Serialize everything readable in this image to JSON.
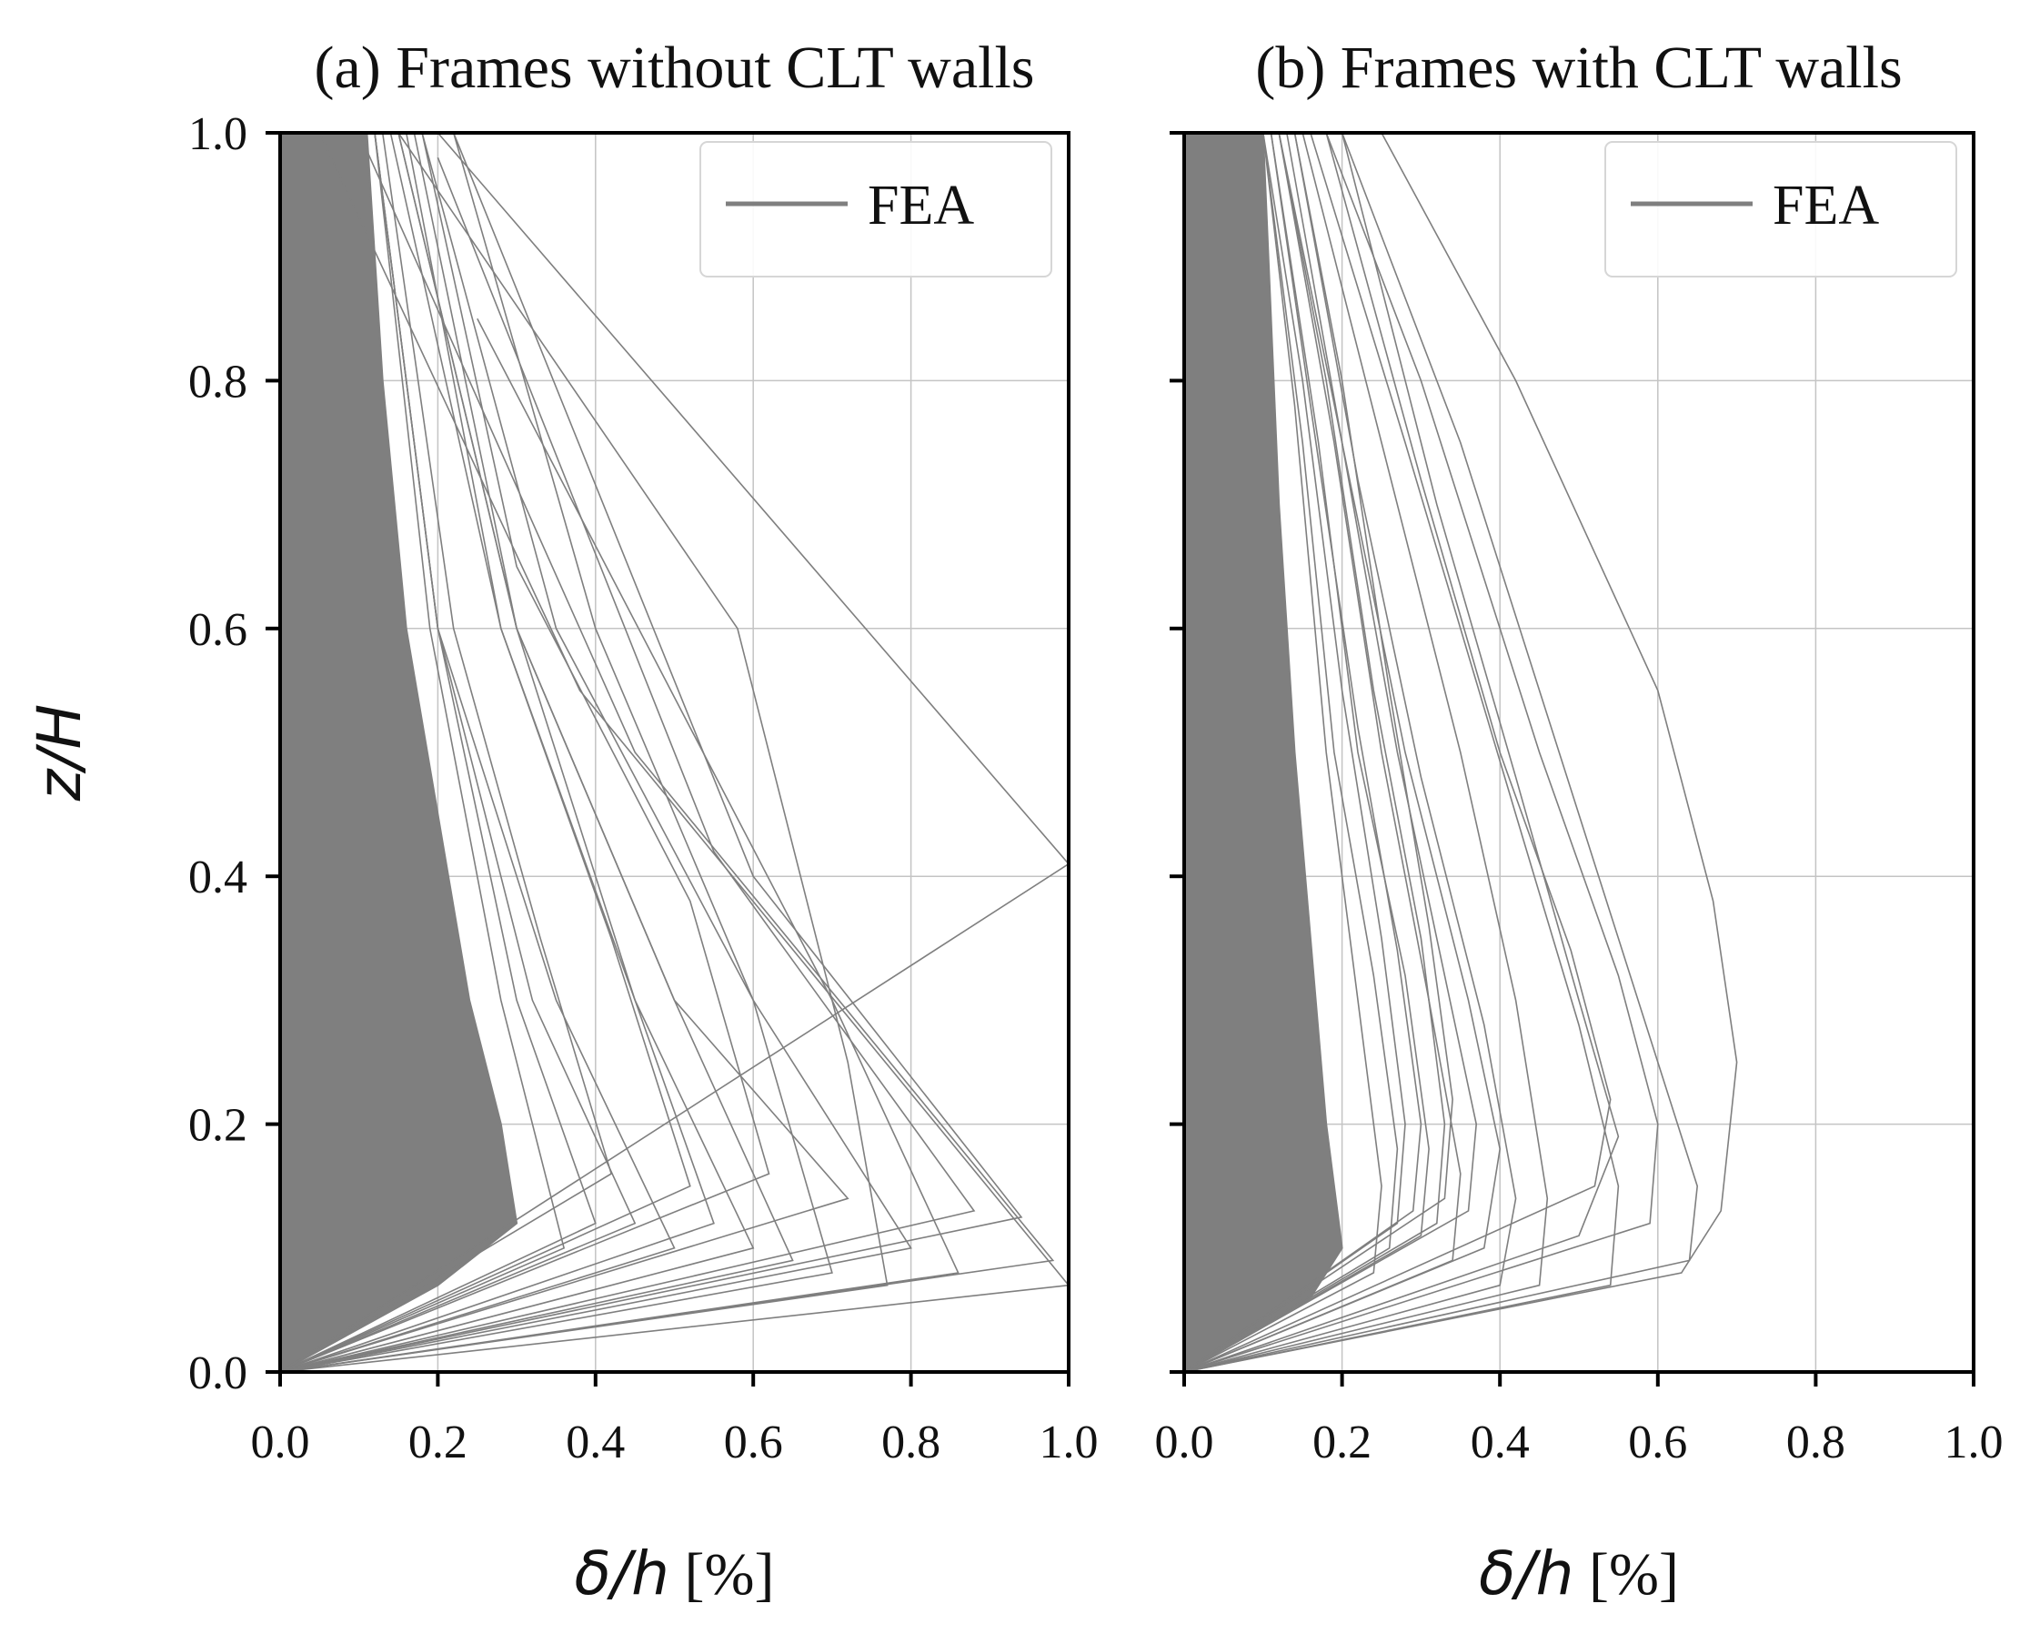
{
  "colors": {
    "series": "#7f7f7f",
    "grid": "#c4c4c4",
    "axis": "#000000",
    "legend_border": "#d6d6d6"
  },
  "chart_data": [
    {
      "type": "line",
      "panel": "a",
      "title": "(a) Frames without CLT walls",
      "xlabel_var": "δ/h",
      "xlabel_unit": " [%]",
      "ylabel": "z/H",
      "xlim": [
        0.0,
        1.0
      ],
      "ylim": [
        0.0,
        1.0
      ],
      "xticks": [
        "0.0",
        "0.2",
        "0.4",
        "0.6",
        "0.8",
        "1.0"
      ],
      "yticks": [
        "0.0",
        "0.2",
        "0.4",
        "0.6",
        "0.8",
        "1.0"
      ],
      "grid": true,
      "legend": {
        "label": "FEA",
        "position": "top-right"
      },
      "dense_region_boundary": [
        [
          0.0,
          0.0
        ],
        [
          0.2,
          0.07
        ],
        [
          0.3,
          0.12
        ],
        [
          0.28,
          0.2
        ],
        [
          0.24,
          0.3
        ],
        [
          0.2,
          0.45
        ],
        [
          0.16,
          0.6
        ],
        [
          0.13,
          0.8
        ],
        [
          0.11,
          1.0
        ],
        [
          0.0,
          1.0
        ]
      ],
      "series": [
        {
          "name": "FEA",
          "x": [
            0,
            1.0,
            0.38,
            0.05
          ],
          "y": [
            0,
            0.07,
            0.55,
            1.0
          ]
        },
        {
          "name": "FEA",
          "x": [
            0,
            0.98,
            0.45,
            0.1
          ],
          "y": [
            0,
            0.09,
            0.5,
            1.0
          ]
        },
        {
          "name": "FEA",
          "x": [
            0,
            0.94,
            0.6,
            0.22
          ],
          "y": [
            0,
            0.125,
            0.4,
            1.0
          ]
        },
        {
          "name": "FEA",
          "x": [
            0,
            0.88,
            0.55,
            0.2
          ],
          "y": [
            0,
            0.13,
            0.42,
            0.98
          ]
        },
        {
          "name": "FEA",
          "x": [
            0,
            0.86,
            0.7,
            0.25
          ],
          "y": [
            0,
            0.08,
            0.3,
            0.85
          ]
        },
        {
          "name": "FEA",
          "x": [
            0,
            0.77,
            0.72,
            0.58,
            0.15
          ],
          "y": [
            0,
            0.07,
            0.25,
            0.6,
            1.0
          ]
        },
        {
          "name": "FEA",
          "x": [
            0,
            0.7,
            0.6,
            0.4,
            0.22
          ],
          "y": [
            0,
            0.08,
            0.3,
            0.6,
            1.0
          ]
        },
        {
          "name": "FEA",
          "x": [
            0,
            0.65,
            0.5,
            0.3,
            0.15
          ],
          "y": [
            0,
            0.09,
            0.3,
            0.6,
            1.0
          ]
        },
        {
          "name": "FEA",
          "x": [
            0,
            0.6,
            0.45,
            0.28,
            0.14
          ],
          "y": [
            0,
            0.1,
            0.3,
            0.6,
            1.0
          ]
        },
        {
          "name": "FEA",
          "x": [
            0,
            0.55,
            0.45,
            0.3,
            0.15
          ],
          "y": [
            0,
            0.12,
            0.3,
            0.6,
            1.0
          ]
        },
        {
          "name": "FEA",
          "x": [
            0,
            1.0,
            0.2
          ],
          "y": [
            0,
            0.41,
            1.0
          ]
        },
        {
          "name": "FEA",
          "x": [
            0,
            0.5,
            0.35,
            0.2,
            0.12
          ],
          "y": [
            0,
            0.1,
            0.3,
            0.6,
            1.0
          ]
        },
        {
          "name": "FEA",
          "x": [
            0,
            0.45,
            0.32,
            0.2,
            0.12
          ],
          "y": [
            0,
            0.12,
            0.3,
            0.6,
            1.0
          ]
        },
        {
          "name": "FEA",
          "x": [
            0,
            0.72,
            0.5,
            0.3,
            0.17
          ],
          "y": [
            0,
            0.14,
            0.3,
            0.6,
            1.0
          ]
        },
        {
          "name": "FEA",
          "x": [
            0,
            0.8,
            0.6,
            0.35,
            0.18
          ],
          "y": [
            0,
            0.1,
            0.3,
            0.6,
            1.0
          ]
        },
        {
          "name": "FEA",
          "x": [
            0,
            0.4,
            0.3,
            0.2,
            0.12
          ],
          "y": [
            0,
            0.12,
            0.3,
            0.6,
            1.0
          ]
        },
        {
          "name": "FEA",
          "x": [
            0,
            0.52,
            0.42,
            0.28,
            0.16
          ],
          "y": [
            0,
            0.15,
            0.35,
            0.6,
            1.0
          ]
        },
        {
          "name": "FEA",
          "x": [
            0,
            0.62,
            0.52,
            0.3,
            0.18
          ],
          "y": [
            0,
            0.16,
            0.38,
            0.65,
            1.0
          ]
        },
        {
          "name": "FEA",
          "x": [
            0,
            0.42,
            0.33,
            0.22,
            0.13
          ],
          "y": [
            0,
            0.16,
            0.35,
            0.6,
            1.0
          ]
        },
        {
          "name": "FEA",
          "x": [
            0,
            0.36,
            0.28,
            0.19,
            0.12
          ],
          "y": [
            0,
            0.1,
            0.3,
            0.6,
            1.0
          ]
        }
      ]
    },
    {
      "type": "line",
      "panel": "b",
      "title": "(b) Frames with CLT walls",
      "xlabel_var": "δ/h",
      "xlabel_unit": " [%]",
      "ylabel": "",
      "xlim": [
        0.0,
        1.0
      ],
      "ylim": [
        0.0,
        1.0
      ],
      "xticks": [
        "0.0",
        "0.2",
        "0.4",
        "0.6",
        "0.8",
        "1.0"
      ],
      "yticks": [],
      "grid": true,
      "legend": {
        "label": "FEA",
        "position": "top-right"
      },
      "dense_region_boundary": [
        [
          0.0,
          0.0
        ],
        [
          0.16,
          0.06
        ],
        [
          0.2,
          0.1
        ],
        [
          0.18,
          0.2
        ],
        [
          0.16,
          0.35
        ],
        [
          0.14,
          0.5
        ],
        [
          0.12,
          0.7
        ],
        [
          0.1,
          1.0
        ],
        [
          0.0,
          1.0
        ]
      ],
      "series": [
        {
          "name": "FEA",
          "x": [
            0,
            0.63,
            0.68,
            0.7,
            0.67,
            0.6,
            0.42,
            0.25
          ],
          "y": [
            0,
            0.08,
            0.13,
            0.25,
            0.38,
            0.55,
            0.8,
            1.0
          ]
        },
        {
          "name": "FEA",
          "x": [
            0,
            0.64,
            0.65,
            0.6,
            0.5,
            0.35,
            0.2
          ],
          "y": [
            0,
            0.09,
            0.15,
            0.25,
            0.45,
            0.75,
            1.0
          ]
        },
        {
          "name": "FEA",
          "x": [
            0,
            0.59,
            0.6,
            0.55,
            0.45,
            0.3,
            0.18
          ],
          "y": [
            0,
            0.12,
            0.2,
            0.32,
            0.5,
            0.8,
            1.0
          ]
        },
        {
          "name": "FEA",
          "x": [
            0,
            0.54,
            0.55,
            0.5,
            0.42,
            0.28,
            0.16
          ],
          "y": [
            0,
            0.07,
            0.15,
            0.28,
            0.45,
            0.75,
            1.0
          ]
        },
        {
          "name": "FEA",
          "x": [
            0,
            0.5,
            0.55,
            0.5,
            0.42,
            0.32,
            0.2
          ],
          "y": [
            0,
            0.11,
            0.19,
            0.3,
            0.48,
            0.7,
            1.0
          ]
        },
        {
          "name": "FEA",
          "x": [
            0,
            0.45,
            0.46,
            0.42,
            0.35,
            0.25,
            0.15
          ],
          "y": [
            0,
            0.07,
            0.14,
            0.3,
            0.5,
            0.75,
            1.0
          ]
        },
        {
          "name": "FEA",
          "x": [
            0,
            0.52,
            0.54,
            0.49,
            0.4,
            0.3,
            0.18
          ],
          "y": [
            0,
            0.15,
            0.22,
            0.34,
            0.5,
            0.72,
            1.0
          ]
        },
        {
          "name": "FEA",
          "x": [
            0,
            0.4,
            0.42,
            0.38,
            0.3,
            0.22,
            0.14
          ],
          "y": [
            0,
            0.07,
            0.14,
            0.28,
            0.48,
            0.72,
            1.0
          ]
        },
        {
          "name": "FEA",
          "x": [
            0,
            0.38,
            0.4,
            0.36,
            0.28,
            0.2,
            0.13
          ],
          "y": [
            0,
            0.1,
            0.18,
            0.3,
            0.5,
            0.75,
            1.0
          ]
        },
        {
          "name": "FEA",
          "x": [
            0,
            0.36,
            0.37,
            0.33,
            0.27,
            0.2,
            0.12
          ],
          "y": [
            0,
            0.13,
            0.2,
            0.32,
            0.5,
            0.75,
            1.0
          ]
        },
        {
          "name": "FEA",
          "x": [
            0,
            0.34,
            0.35,
            0.31,
            0.25,
            0.19,
            0.12
          ],
          "y": [
            0,
            0.09,
            0.16,
            0.3,
            0.5,
            0.75,
            1.0
          ]
        },
        {
          "name": "FEA",
          "x": [
            0,
            0.32,
            0.33,
            0.3,
            0.24,
            0.18,
            0.12
          ],
          "y": [
            0,
            0.12,
            0.2,
            0.35,
            0.55,
            0.8,
            1.0
          ]
        },
        {
          "name": "FEA",
          "x": [
            0,
            0.3,
            0.31,
            0.28,
            0.22,
            0.17,
            0.11
          ],
          "y": [
            0,
            0.11,
            0.18,
            0.32,
            0.5,
            0.75,
            1.0
          ]
        },
        {
          "name": "FEA",
          "x": [
            0,
            0.33,
            0.34,
            0.31,
            0.26,
            0.2,
            0.14
          ],
          "y": [
            0,
            0.14,
            0.22,
            0.36,
            0.55,
            0.8,
            1.0
          ]
        },
        {
          "name": "FEA",
          "x": [
            0,
            0.29,
            0.3,
            0.27,
            0.22,
            0.16,
            0.11
          ],
          "y": [
            0,
            0.13,
            0.2,
            0.34,
            0.52,
            0.78,
            1.0
          ]
        },
        {
          "name": "FEA",
          "x": [
            0,
            0.27,
            0.28,
            0.25,
            0.2,
            0.15,
            0.1
          ],
          "y": [
            0,
            0.12,
            0.2,
            0.35,
            0.55,
            0.8,
            1.0
          ]
        },
        {
          "name": "FEA",
          "x": [
            0,
            0.26,
            0.27,
            0.24,
            0.19,
            0.15,
            0.1
          ],
          "y": [
            0,
            0.1,
            0.18,
            0.32,
            0.5,
            0.75,
            1.0
          ]
        },
        {
          "name": "FEA",
          "x": [
            0,
            0.24,
            0.25,
            0.22,
            0.18,
            0.14,
            0.1
          ],
          "y": [
            0,
            0.08,
            0.15,
            0.3,
            0.5,
            0.78,
            1.0
          ]
        }
      ]
    }
  ]
}
